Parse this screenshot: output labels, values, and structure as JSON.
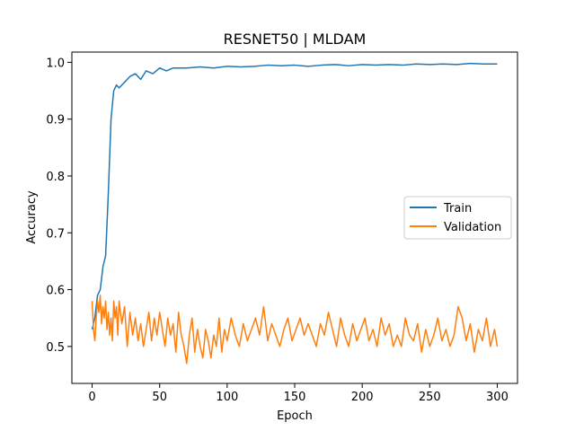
{
  "chart_data": {
    "type": "line",
    "title": "RESNET50 | MLDAM",
    "xlabel": "Epoch",
    "ylabel": "Accuracy",
    "xlim": [
      -15,
      315
    ],
    "ylim": [
      0.435,
      1.018
    ],
    "xticks": [
      0,
      50,
      100,
      150,
      200,
      250,
      300
    ],
    "yticks": [
      0.5,
      0.6,
      0.7,
      0.8,
      0.9,
      1.0
    ],
    "ytick_labels": [
      "0.5",
      "0.6",
      "0.7",
      "0.8",
      "0.9",
      "1.0"
    ],
    "grid": false,
    "legend_position": "center-right",
    "series": [
      {
        "name": "Train",
        "color": "#1f77b4",
        "x": [
          0,
          2,
          4,
          6,
          8,
          10,
          12,
          14,
          16,
          18,
          20,
          24,
          28,
          32,
          36,
          40,
          45,
          50,
          55,
          60,
          70,
          80,
          90,
          100,
          110,
          120,
          130,
          140,
          150,
          160,
          170,
          180,
          190,
          200,
          210,
          220,
          230,
          240,
          250,
          260,
          270,
          280,
          290,
          300
        ],
        "values": [
          0.53,
          0.55,
          0.59,
          0.6,
          0.64,
          0.66,
          0.77,
          0.9,
          0.95,
          0.96,
          0.955,
          0.965,
          0.975,
          0.98,
          0.97,
          0.985,
          0.98,
          0.99,
          0.985,
          0.99,
          0.99,
          0.992,
          0.99,
          0.993,
          0.992,
          0.993,
          0.995,
          0.994,
          0.995,
          0.993,
          0.995,
          0.996,
          0.994,
          0.996,
          0.995,
          0.996,
          0.995,
          0.997,
          0.996,
          0.997,
          0.996,
          0.998,
          0.997,
          0.997
        ]
      },
      {
        "name": "Validation",
        "color": "#ff7f0e",
        "x": [
          0,
          1,
          2,
          3,
          4,
          5,
          6,
          7,
          8,
          9,
          10,
          11,
          12,
          13,
          14,
          15,
          16,
          17,
          18,
          19,
          20,
          22,
          24,
          26,
          28,
          30,
          32,
          34,
          36,
          38,
          40,
          42,
          44,
          46,
          48,
          50,
          52,
          54,
          56,
          58,
          60,
          62,
          64,
          66,
          68,
          70,
          72,
          74,
          76,
          78,
          80,
          82,
          84,
          86,
          88,
          90,
          92,
          94,
          96,
          98,
          100,
          103,
          106,
          109,
          112,
          115,
          118,
          121,
          124,
          127,
          130,
          133,
          136,
          139,
          142,
          145,
          148,
          151,
          154,
          157,
          160,
          163,
          166,
          169,
          172,
          175,
          178,
          181,
          184,
          187,
          190,
          193,
          196,
          199,
          202,
          205,
          208,
          211,
          214,
          217,
          220,
          223,
          226,
          229,
          232,
          235,
          238,
          241,
          244,
          247,
          250,
          253,
          256,
          259,
          262,
          265,
          268,
          271,
          274,
          277,
          280,
          283,
          286,
          289,
          292,
          295,
          298,
          300
        ],
        "values": [
          0.58,
          0.53,
          0.51,
          0.55,
          0.58,
          0.56,
          0.59,
          0.54,
          0.57,
          0.55,
          0.58,
          0.53,
          0.56,
          0.52,
          0.55,
          0.51,
          0.58,
          0.55,
          0.57,
          0.52,
          0.58,
          0.54,
          0.57,
          0.5,
          0.56,
          0.52,
          0.55,
          0.51,
          0.54,
          0.5,
          0.53,
          0.56,
          0.51,
          0.55,
          0.52,
          0.56,
          0.53,
          0.5,
          0.55,
          0.52,
          0.54,
          0.49,
          0.56,
          0.52,
          0.5,
          0.47,
          0.52,
          0.55,
          0.49,
          0.53,
          0.5,
          0.48,
          0.53,
          0.51,
          0.48,
          0.52,
          0.5,
          0.55,
          0.49,
          0.53,
          0.51,
          0.55,
          0.52,
          0.5,
          0.54,
          0.51,
          0.53,
          0.55,
          0.52,
          0.57,
          0.51,
          0.54,
          0.52,
          0.5,
          0.53,
          0.55,
          0.51,
          0.53,
          0.55,
          0.52,
          0.54,
          0.52,
          0.5,
          0.54,
          0.52,
          0.56,
          0.53,
          0.5,
          0.55,
          0.52,
          0.5,
          0.54,
          0.51,
          0.53,
          0.55,
          0.51,
          0.53,
          0.5,
          0.55,
          0.52,
          0.54,
          0.5,
          0.52,
          0.5,
          0.55,
          0.52,
          0.51,
          0.54,
          0.49,
          0.53,
          0.5,
          0.52,
          0.55,
          0.51,
          0.53,
          0.5,
          0.52,
          0.57,
          0.55,
          0.51,
          0.54,
          0.49,
          0.53,
          0.51,
          0.55,
          0.5,
          0.53,
          0.5
        ]
      }
    ]
  }
}
